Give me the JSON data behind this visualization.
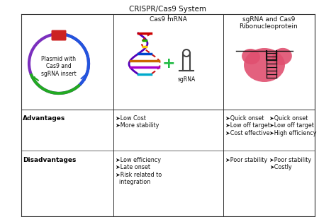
{
  "title": "CRISPR/Cas9 System",
  "bg_color": "#ffffff",
  "col1_header": "Plasmid with\nCas9 and\nsgRNA insert",
  "col2_header": "Cas9 mRNA",
  "col3_header": "sgRNA and Cas9\nRibonucleoprotein",
  "advantages_label": "Advantages",
  "disadvantages_label": "Disadvantages",
  "col1_adv": "➤Low Cost\n➤More stability",
  "col2_adv": "➤Quick onset\n➤Low off target\n➤Cost effective",
  "col3_adv": "➤Quick onset\n➤Low off target\n➤High efficiency",
  "col1_dis": "➤Low efficiency\n➤Late onset\n➤Risk related to\n  integration",
  "col2_dis": "➤Poor stability",
  "col3_dis": "➤Poor stability\n➤Costly",
  "divider_color": "#333333",
  "text_color": "#111111",
  "bold_color": "#000000",
  "plasmid_purple": "#7B2FBE",
  "plasmid_green": "#22aa22",
  "plasmid_red": "#cc2222",
  "plasmid_blue": "#2255dd",
  "rnp_color": "#e05070",
  "helix_colors": [
    "#cc0000",
    "#22aa00",
    "#ffcc00",
    "#0044cc",
    "#cc6600",
    "#aa00cc",
    "#00aacc"
  ]
}
